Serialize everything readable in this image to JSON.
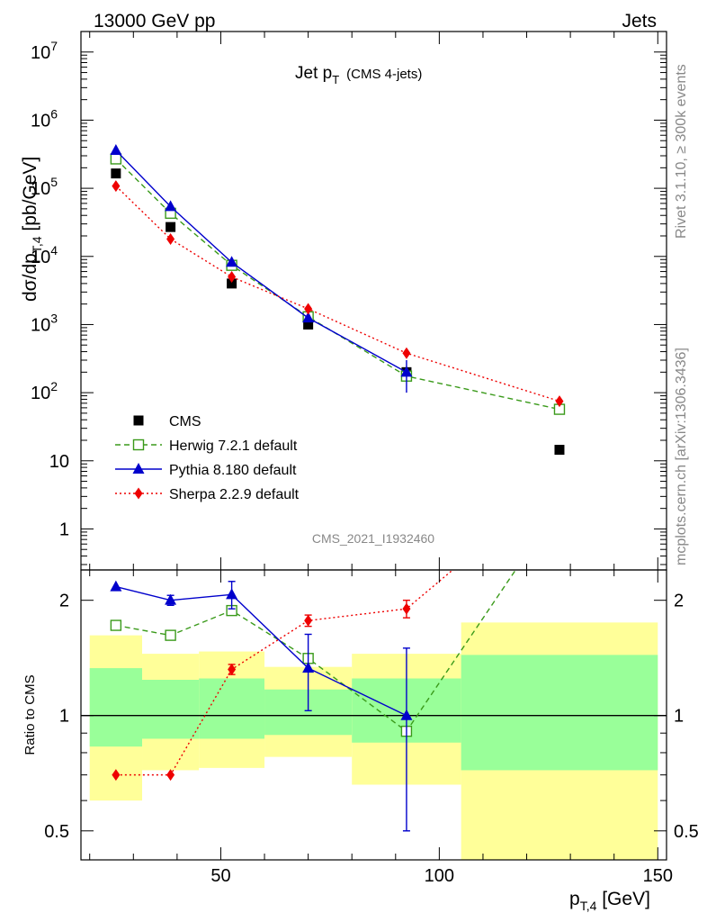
{
  "header": {
    "left": "13000 GeV pp",
    "right": "Jets"
  },
  "side_labels": {
    "rivet": "Rivet 3.1.10, ≥ 300k events",
    "mcplots": "mcplots.cern.ch [arXiv:1306.3436]"
  },
  "chart_data": [
    {
      "type": "scatter",
      "title": "Jet p",
      "title_sub": "T",
      "title_extra": "(CMS 4-jets)",
      "watermark": "CMS_2021_I1932460",
      "yscale": "log",
      "ylim": [
        0.25,
        20000000
      ],
      "xlim": [
        18,
        152
      ],
      "ylabel": {
        "main": "dσ/dp",
        "sub": "T,4",
        "unit": "[pb/GeV]"
      },
      "ytick_labels": [
        "1",
        "10",
        "10",
        "10",
        "10",
        "10",
        "10",
        "10"
      ],
      "ytick_exps": [
        "",
        "",
        "2",
        "3",
        "4",
        "5",
        "6",
        "7"
      ],
      "legend": [
        "CMS",
        "Herwig 7.2.1 default",
        "Pythia 8.180 default",
        "Sherpa 2.2.9 default"
      ],
      "legend_position": "bottom-left",
      "series": [
        {
          "name": "CMS",
          "color": "#000000",
          "marker": "square-filled",
          "x": [
            26,
            38.5,
            52.5,
            70,
            92.5,
            127.5
          ],
          "y": [
            165000,
            27000,
            4000,
            1000,
            200,
            14.5
          ]
        },
        {
          "name": "Herwig 7.2.1 default",
          "color": "#3a9a1a",
          "marker": "square-open",
          "dash": "6,4",
          "x": [
            26,
            38.5,
            52.5,
            70,
            92.5,
            127.5
          ],
          "y": [
            270000,
            43000,
            7400,
            1300,
            175,
            57
          ]
        },
        {
          "name": "Pythia 8.180 default",
          "color": "#0000cc",
          "marker": "triangle",
          "dash": "",
          "x": [
            26,
            38.5,
            52.5,
            70,
            92.5
          ],
          "y": [
            360000,
            54000,
            8200,
            1250,
            200
          ]
        },
        {
          "name": "Sherpa 2.2.9 default",
          "color": "#ee0000",
          "marker": "diamond",
          "dash": "2,3",
          "x": [
            26,
            38.5,
            52.5,
            70,
            92.5,
            127.5
          ],
          "y": [
            108000,
            18000,
            5000,
            1700,
            380,
            75
          ]
        }
      ]
    },
    {
      "type": "scatter",
      "yscale": "log",
      "ylim": [
        0.42,
        2.4
      ],
      "xlim": [
        18,
        152
      ],
      "ylabel": "Ratio to CMS",
      "xlabel": {
        "main": "p",
        "sub": "T,4",
        "unit": "[GeV]"
      },
      "xtick_labels": [
        "50",
        "100",
        "150"
      ],
      "xtick_values": [
        50,
        100,
        150
      ],
      "ytick_labels": [
        "0.5",
        "1",
        "2"
      ],
      "ytick_values": [
        0.5,
        1,
        2
      ],
      "reference_line": 1,
      "uncertainty_bands": {
        "bins": [
          [
            20,
            32
          ],
          [
            32,
            45
          ],
          [
            45,
            60
          ],
          [
            60,
            80
          ],
          [
            80,
            105
          ],
          [
            105,
            150
          ]
        ],
        "outer": [
          [
            0.6,
            1.62
          ],
          [
            0.72,
            1.45
          ],
          [
            0.73,
            1.47
          ],
          [
            0.78,
            1.34
          ],
          [
            0.66,
            1.45
          ],
          [
            0.35,
            1.75
          ]
        ],
        "inner": [
          [
            0.83,
            1.33
          ],
          [
            0.87,
            1.24
          ],
          [
            0.87,
            1.25
          ],
          [
            0.89,
            1.17
          ],
          [
            0.85,
            1.25
          ],
          [
            0.72,
            1.44
          ]
        ]
      },
      "series": [
        {
          "name": "Herwig 7.2.1 default",
          "color": "#3a9a1a",
          "marker": "square-open",
          "dash": "6,4",
          "x": [
            26,
            38.5,
            52.5,
            70,
            92.5
          ],
          "y": [
            1.72,
            1.62,
            1.88,
            1.41,
            0.91
          ],
          "line_extend": [
            [
              92.5,
              0.91
            ],
            [
              118,
              2.45
            ]
          ]
        },
        {
          "name": "Pythia 8.180 default",
          "color": "#0000cc",
          "marker": "triangle",
          "dash": "",
          "x": [
            26,
            38.5,
            52.5,
            70,
            92.5
          ],
          "y": [
            2.17,
            2.0,
            2.07,
            1.33,
            1.0
          ],
          "yerr": [
            0,
            0.06,
            0.17,
            0.3,
            0.5
          ]
        },
        {
          "name": "Sherpa 2.2.9 default",
          "color": "#ee0000",
          "marker": "diamond",
          "dash": "2,3",
          "x": [
            26,
            38.5,
            52.5,
            70,
            92.5
          ],
          "y": [
            0.7,
            0.7,
            1.32,
            1.77,
            1.9
          ],
          "yerr": [
            0,
            0,
            0.04,
            0.06,
            0.1
          ],
          "line_extend": [
            [
              92.5,
              1.9
            ],
            [
              104,
              2.45
            ]
          ]
        }
      ]
    }
  ]
}
